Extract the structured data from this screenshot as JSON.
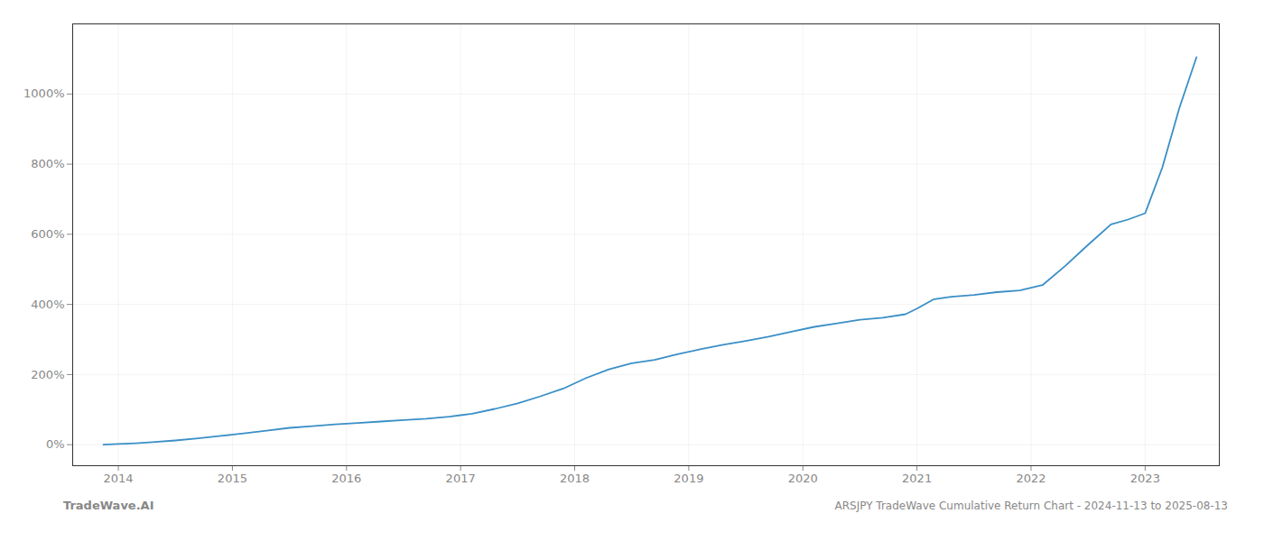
{
  "chart_data": {
    "type": "line",
    "title": "ARSJPY TradeWave Cumulative Return Chart - 2024-11-13 to 2025-08-13",
    "annotations": [
      "TradeWave.AI"
    ],
    "color": "#3a8fc7",
    "grid": true,
    "x": [
      2013.87,
      2014.0,
      2014.15,
      2014.3,
      2014.5,
      2014.7,
      2014.9,
      2015.1,
      2015.3,
      2015.5,
      2015.7,
      2015.9,
      2016.1,
      2016.3,
      2016.5,
      2016.7,
      2016.9,
      2017.1,
      2017.3,
      2017.5,
      2017.7,
      2017.9,
      2018.1,
      2018.3,
      2018.5,
      2018.7,
      2018.9,
      2019.1,
      2019.3,
      2019.5,
      2019.7,
      2019.9,
      2020.1,
      2020.3,
      2020.5,
      2020.7,
      2020.9,
      2021.0,
      2021.15,
      2021.3,
      2021.5,
      2021.7,
      2021.9,
      2022.1,
      2022.3,
      2022.5,
      2022.7,
      2022.85,
      2023.0,
      2023.15,
      2023.3,
      2023.45
    ],
    "values": [
      0,
      2,
      4,
      7,
      12,
      18,
      25,
      32,
      40,
      48,
      53,
      58,
      62,
      66,
      70,
      74,
      80,
      88,
      102,
      118,
      138,
      160,
      190,
      215,
      232,
      242,
      258,
      272,
      285,
      296,
      308,
      322,
      336,
      346,
      356,
      362,
      372,
      388,
      415,
      422,
      427,
      435,
      440,
      455,
      510,
      570,
      628,
      642,
      660,
      790,
      960,
      1105
    ],
    "xlim": [
      2013.6,
      2023.65
    ],
    "xticks": [
      2014,
      2015,
      2016,
      2017,
      2018,
      2019,
      2020,
      2021,
      2022,
      2023
    ],
    "ylim": [
      -60,
      1200
    ],
    "yticks": [
      {
        "value": 0,
        "label": "0%"
      },
      {
        "value": 200,
        "label": "200%"
      },
      {
        "value": 400,
        "label": "400%"
      },
      {
        "value": 600,
        "label": "600%"
      },
      {
        "value": 800,
        "label": "800%"
      },
      {
        "value": 1000,
        "label": "1000%"
      }
    ]
  }
}
